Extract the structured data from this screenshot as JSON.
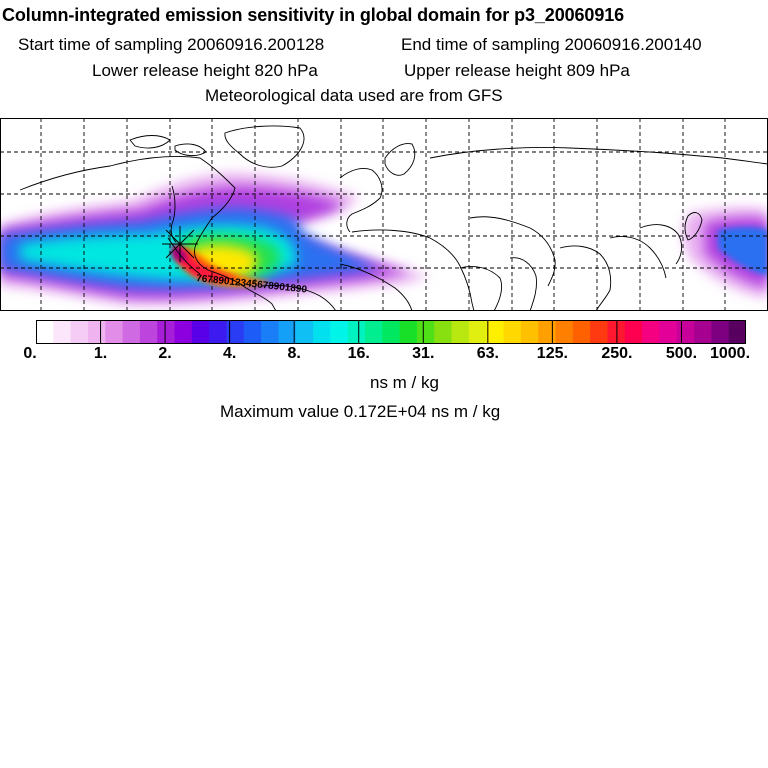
{
  "header": {
    "title": "Column-integrated emission sensitivity in global domain for p3_20060916",
    "start_sampling": "Start time of sampling 20060916.200128",
    "end_sampling": "End time of sampling 20060916.200140",
    "lower_release": "Lower release height  820 hPa",
    "upper_release": "Upper release height  809 hPa",
    "met_data": "Meteorological data used are from GFS"
  },
  "map": {
    "track_labels": "76789012345678901890",
    "source_marker": "star-release-icon"
  },
  "colorbar": {
    "tick_labels": [
      "0.",
      "1.",
      "2.",
      "4.",
      "8.",
      "16.",
      "31.",
      "63.",
      "125.",
      "250.",
      "500.",
      "1000."
    ],
    "colors": [
      "#ffffff",
      "#fbe6fb",
      "#f5ccf5",
      "#efb3ef",
      "#e28ee8",
      "#d06ae2",
      "#bd45dd",
      "#a61ed8",
      "#8c00e0",
      "#5a00e8",
      "#3c1af0",
      "#2b3cf5",
      "#1e5cf8",
      "#1a7ef8",
      "#15a0f8",
      "#10c0f5",
      "#00e0ee",
      "#00f5e8",
      "#00f2c0",
      "#00ee90",
      "#00e860",
      "#18e028",
      "#50e018",
      "#88e010",
      "#b8e810",
      "#e0ee10",
      "#fff000",
      "#ffd800",
      "#ffc000",
      "#ffa000",
      "#ff8000",
      "#ff6000",
      "#ff3a10",
      "#ff1830",
      "#ff0050",
      "#f50080",
      "#e20098",
      "#c8009a",
      "#a60090",
      "#7e0080",
      "#580060"
    ],
    "unit": "ns m / kg"
  },
  "max_value": "Maximum value  0.172E+04 ns m / kg"
}
